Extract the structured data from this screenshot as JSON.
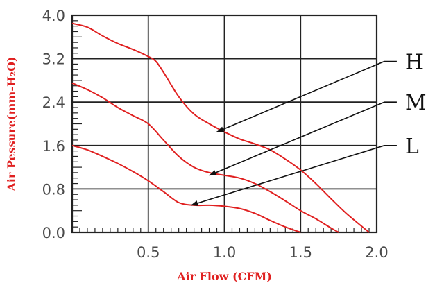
{
  "chart_data": {
    "type": "line",
    "title": "",
    "xlabel": "Air Flow (CFM)",
    "ylabel": "Air Pessure(mm-H₂O)",
    "xlim": [
      0.0,
      2.0
    ],
    "ylim": [
      0.0,
      4.0
    ],
    "x_ticks": [
      "0.5",
      "1.0",
      "1.5",
      "2.0"
    ],
    "y_ticks": [
      "0.0",
      "0.8",
      "1.6",
      "2.4",
      "3.2",
      "4.0"
    ],
    "grid": true,
    "line_color": "#e02020",
    "series": [
      {
        "name": "H",
        "x": [
          0.0,
          0.1,
          0.2,
          0.3,
          0.4,
          0.5,
          0.55,
          0.6,
          0.7,
          0.8,
          0.9,
          1.0,
          1.1,
          1.2,
          1.3,
          1.4,
          1.5,
          1.6,
          1.7,
          1.8,
          1.95
        ],
        "y": [
          3.85,
          3.78,
          3.62,
          3.48,
          3.37,
          3.24,
          3.15,
          2.95,
          2.5,
          2.18,
          2.0,
          1.85,
          1.72,
          1.63,
          1.52,
          1.35,
          1.15,
          0.9,
          0.62,
          0.35,
          0.0
        ]
      },
      {
        "name": "M",
        "x": [
          0.0,
          0.1,
          0.2,
          0.3,
          0.4,
          0.5,
          0.6,
          0.7,
          0.8,
          0.9,
          1.0,
          1.1,
          1.2,
          1.3,
          1.4,
          1.5,
          1.6,
          1.7,
          1.75
        ],
        "y": [
          2.75,
          2.63,
          2.48,
          2.3,
          2.15,
          2.0,
          1.7,
          1.4,
          1.2,
          1.1,
          1.05,
          1.0,
          0.9,
          0.75,
          0.58,
          0.4,
          0.25,
          0.08,
          0.0
        ]
      },
      {
        "name": "L",
        "x": [
          0.0,
          0.1,
          0.2,
          0.3,
          0.4,
          0.5,
          0.6,
          0.7,
          0.8,
          0.9,
          1.0,
          1.1,
          1.2,
          1.3,
          1.4,
          1.5
        ],
        "y": [
          1.6,
          1.52,
          1.4,
          1.27,
          1.12,
          0.95,
          0.75,
          0.55,
          0.5,
          0.5,
          0.48,
          0.44,
          0.35,
          0.22,
          0.1,
          0.0
        ]
      }
    ],
    "annotations": [
      {
        "label": "H",
        "points_to": [
          0.95,
          1.85
        ],
        "text_at": [
          2.15,
          3.15
        ]
      },
      {
        "label": "M",
        "points_to": [
          0.9,
          1.05
        ],
        "text_at": [
          2.15,
          2.4
        ]
      },
      {
        "label": "L",
        "points_to": [
          0.78,
          0.5
        ],
        "text_at": [
          2.15,
          1.6
        ]
      }
    ]
  }
}
